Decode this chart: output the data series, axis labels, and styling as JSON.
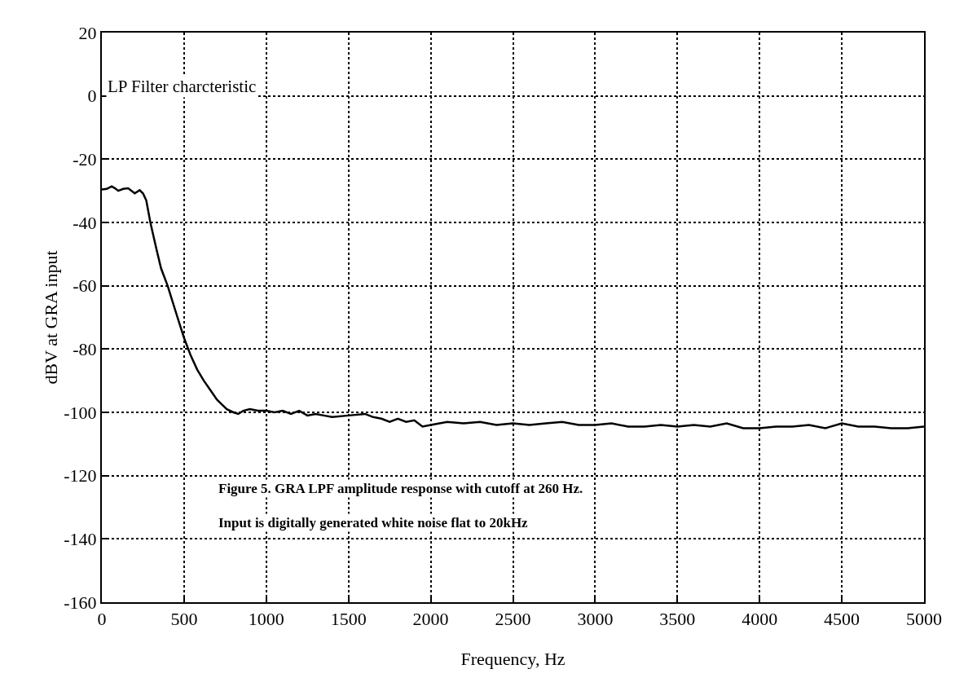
{
  "chart_data": {
    "type": "line",
    "xlabel": "Frequency, Hz",
    "ylabel": "dBV at GRA input",
    "annotations": [
      "LP Filter charcteristic",
      "Figure 5. GRA LPF amplitude response with cutoff at 260 Hz.",
      "Input is digitally generated white noise flat to 20kHz"
    ],
    "x": [
      0,
      30,
      60,
      80,
      100,
      130,
      160,
      200,
      230,
      250,
      270,
      295,
      330,
      360,
      400,
      430,
      460,
      500,
      540,
      580,
      620,
      660,
      700,
      730,
      760,
      800,
      830,
      860,
      900,
      950,
      1000,
      1050,
      1100,
      1150,
      1200,
      1250,
      1300,
      1350,
      1400,
      1500,
      1600,
      1650,
      1700,
      1750,
      1800,
      1850,
      1900,
      1950,
      2000,
      2100,
      2200,
      2300,
      2400,
      2500,
      2600,
      2700,
      2800,
      2900,
      3000,
      3100,
      3200,
      3300,
      3400,
      3500,
      3600,
      3700,
      3800,
      3900,
      4000,
      4100,
      4200,
      4300,
      4400,
      4500,
      4600,
      4700,
      4800,
      4900,
      5000
    ],
    "series": [
      {
        "color": "#000000",
        "values": [
          -29.6,
          -29.4,
          -28.6,
          -29.2,
          -30,
          -29.4,
          -29.2,
          -30.8,
          -29.8,
          -30.8,
          -33,
          -40,
          -48,
          -54.5,
          -60,
          -65,
          -70,
          -76.5,
          -82,
          -86.5,
          -90,
          -93,
          -96,
          -97.5,
          -99,
          -100,
          -100.5,
          -99.5,
          -99,
          -99.5,
          -99.5,
          -100,
          -99.5,
          -100.5,
          -99.5,
          -101,
          -100.5,
          -101,
          -101.5,
          -101,
          -100.5,
          -101.5,
          -102,
          -103,
          -102,
          -103,
          -102.5,
          -104.5,
          -104,
          -103,
          -103.5,
          -103,
          -104,
          -103.5,
          -104,
          -103.5,
          -103,
          -104,
          -104,
          -103.5,
          -104.5,
          -104.5,
          -104,
          -104.5,
          -104,
          -104.5,
          -103.5,
          -105,
          -105,
          -104.5,
          -104.5,
          -104,
          -105,
          -103.5,
          -104.5,
          -104.5,
          -105,
          -105,
          -104.5
        ]
      }
    ],
    "xlim": [
      0,
      5000
    ],
    "xticks": [
      0,
      500,
      1000,
      1500,
      2000,
      2500,
      3000,
      3500,
      4000,
      4500,
      5000
    ],
    "ylim": [
      -160,
      20
    ],
    "yticks": [
      -160,
      -140,
      -120,
      -100,
      -80,
      -60,
      -40,
      -20,
      0,
      20
    ],
    "grid": true,
    "marker": "none",
    "line_style": "solid"
  }
}
